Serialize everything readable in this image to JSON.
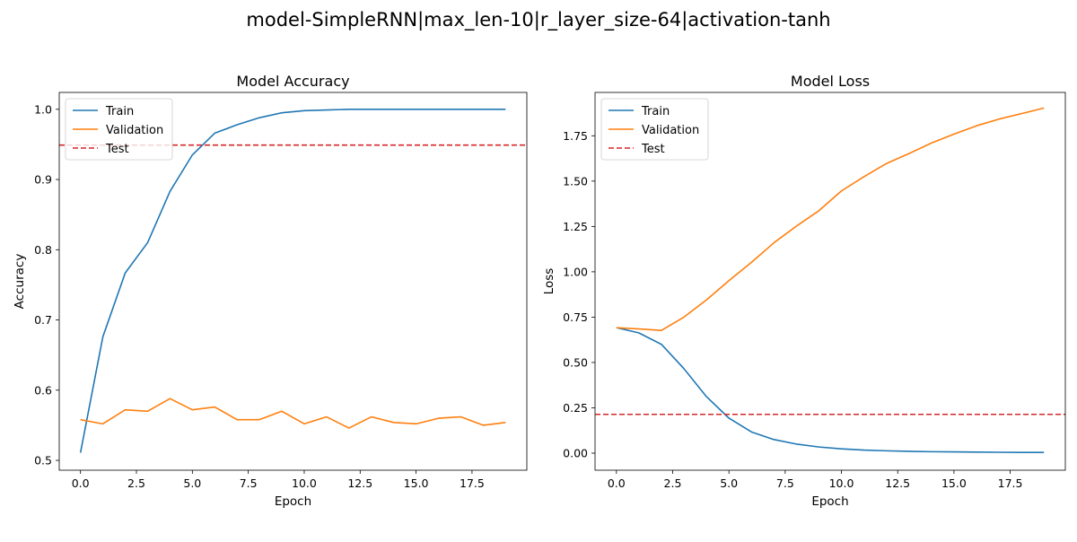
{
  "figure": {
    "suptitle": "model-SimpleRNN|max_len-10|r_layer_size-64|activation-tanh"
  },
  "colors": {
    "train": "#1f77b4",
    "validation": "#ff7f0e",
    "test": "#d62728"
  },
  "chart_data": [
    {
      "type": "line",
      "title": "Model Accuracy",
      "xlabel": "Epoch",
      "ylabel": "Accuracy",
      "xlim": [
        -0.95,
        19.95
      ],
      "ylim": [
        0.486,
        1.024
      ],
      "xticks": [
        0.0,
        2.5,
        5.0,
        7.5,
        10.0,
        12.5,
        15.0,
        17.5
      ],
      "xtick_labels": [
        "0.0",
        "2.5",
        "5.0",
        "7.5",
        "10.0",
        "12.5",
        "15.0",
        "17.5"
      ],
      "yticks": [
        0.5,
        0.6,
        0.7,
        0.8,
        0.9,
        1.0
      ],
      "ytick_labels": [
        "0.5",
        "0.6",
        "0.7",
        "0.8",
        "0.9",
        "1.0"
      ],
      "grid": false,
      "legend_position": "upper left",
      "x": [
        0,
        1,
        2,
        3,
        4,
        5,
        6,
        7,
        8,
        9,
        10,
        11,
        12,
        13,
        14,
        15,
        16,
        17,
        18,
        19
      ],
      "series": [
        {
          "name": "Train",
          "values": [
            0.511,
            0.676,
            0.767,
            0.81,
            0.883,
            0.935,
            0.966,
            0.978,
            0.988,
            0.995,
            0.998,
            0.999,
            1.0,
            1.0,
            1.0,
            1.0,
            1.0,
            1.0,
            1.0,
            1.0
          ]
        },
        {
          "name": "Validation",
          "values": [
            0.558,
            0.552,
            0.572,
            0.57,
            0.588,
            0.572,
            0.576,
            0.558,
            0.558,
            0.57,
            0.552,
            0.562,
            0.546,
            0.562,
            0.554,
            0.552,
            0.56,
            0.562,
            0.55,
            0.554
          ]
        }
      ],
      "hlines": [
        {
          "name": "Test",
          "y": 0.949
        }
      ]
    },
    {
      "type": "line",
      "title": "Model Loss",
      "xlabel": "Epoch",
      "ylabel": "Loss",
      "xlim": [
        -0.95,
        19.95
      ],
      "ylim": [
        -0.094,
        1.989
      ],
      "xticks": [
        0.0,
        2.5,
        5.0,
        7.5,
        10.0,
        12.5,
        15.0,
        17.5
      ],
      "xtick_labels": [
        "0.0",
        "2.5",
        "5.0",
        "7.5",
        "10.0",
        "12.5",
        "15.0",
        "17.5"
      ],
      "yticks": [
        0.0,
        0.25,
        0.5,
        0.75,
        1.0,
        1.25,
        1.5,
        1.75
      ],
      "ytick_labels": [
        "0.00",
        "0.25",
        "0.50",
        "0.75",
        "1.00",
        "1.25",
        "1.50",
        "1.75"
      ],
      "grid": false,
      "legend_position": "upper left",
      "x": [
        0,
        1,
        2,
        3,
        4,
        5,
        6,
        7,
        8,
        9,
        10,
        11,
        12,
        13,
        14,
        15,
        16,
        17,
        18,
        19
      ],
      "series": [
        {
          "name": "Train",
          "values": [
            0.692,
            0.663,
            0.6,
            0.466,
            0.312,
            0.193,
            0.117,
            0.075,
            0.05,
            0.034,
            0.024,
            0.017,
            0.013,
            0.01,
            0.008,
            0.007,
            0.006,
            0.005,
            0.004,
            0.004
          ]
        },
        {
          "name": "Validation",
          "values": [
            0.692,
            0.685,
            0.677,
            0.75,
            0.845,
            0.951,
            1.052,
            1.16,
            1.252,
            1.337,
            1.446,
            1.524,
            1.597,
            1.652,
            1.71,
            1.759,
            1.805,
            1.842,
            1.872,
            1.903
          ]
        }
      ],
      "hlines": [
        {
          "name": "Test",
          "y": 0.214
        }
      ]
    }
  ]
}
